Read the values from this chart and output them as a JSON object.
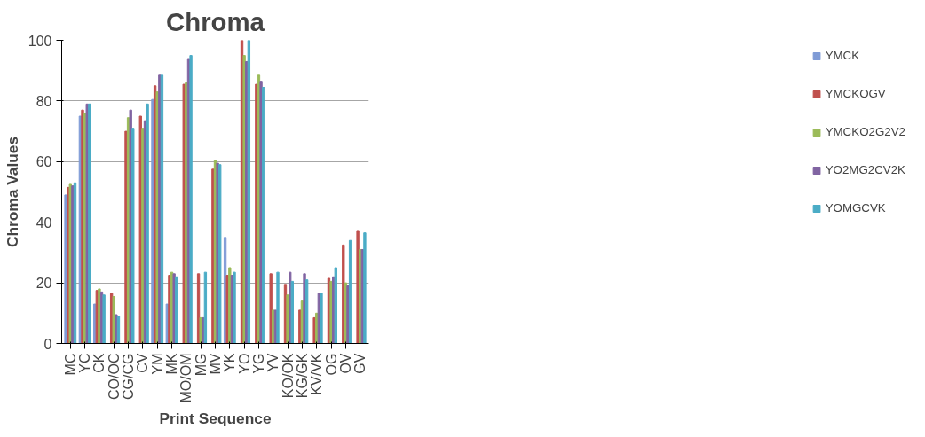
{
  "chart_data": {
    "type": "bar",
    "title": "Chroma",
    "xlabel": "Print Sequence",
    "ylabel": "Chroma Values",
    "categories": [
      "MC",
      "YC",
      "CK",
      "CO/OC",
      "CG/CG",
      "CV",
      "YM",
      "MK",
      "MO/OM",
      "MG",
      "MV",
      "YK",
      "YO",
      "YG",
      "YV",
      "KO/OK",
      "KG/GK",
      "KV/VK",
      "OG",
      "OV",
      "GV"
    ],
    "series": [
      {
        "name": "YMCK",
        "color": "#7f9bd6",
        "values": [
          49,
          75,
          13,
          null,
          null,
          null,
          80.5,
          13,
          null,
          null,
          null,
          35,
          null,
          null,
          null,
          null,
          null,
          null,
          null,
          null,
          null
        ]
      },
      {
        "name": "YMCKOGV",
        "color": "#c0504d",
        "values": [
          51.5,
          77,
          17.5,
          16.5,
          70,
          75,
          85,
          22.5,
          85.5,
          23,
          57.5,
          22.5,
          100,
          85.5,
          23,
          19.5,
          11,
          8.5,
          21.5,
          32.5,
          37
        ]
      },
      {
        "name": "YMCKO2G2V2",
        "color": "#9bbb59",
        "values": [
          52.5,
          76,
          18,
          15.5,
          74.5,
          71,
          83,
          23.5,
          86,
          8.5,
          60.5,
          25,
          95,
          88.5,
          11,
          16,
          14,
          10,
          20.5,
          20,
          31
        ]
      },
      {
        "name": "YO2MG2CV2K",
        "color": "#8064a2",
        "values": [
          52,
          79,
          17,
          9.5,
          77,
          73.5,
          88.5,
          23,
          94,
          8.5,
          59.5,
          22.5,
          93,
          86.5,
          11,
          23.5,
          23,
          16.5,
          22,
          19,
          31
        ]
      },
      {
        "name": "YOMGCVK",
        "color": "#4bacc6",
        "values": [
          53,
          79,
          16,
          9,
          71,
          79,
          88.5,
          22,
          95,
          23.5,
          59,
          23.5,
          100,
          84.5,
          23.5,
          20.5,
          21,
          16.5,
          25,
          34,
          36.5
        ]
      }
    ],
    "ylim": [
      0,
      100
    ],
    "yticks": [
      0,
      20,
      40,
      60,
      80,
      100
    ],
    "grid": "y",
    "legend": "right"
  }
}
